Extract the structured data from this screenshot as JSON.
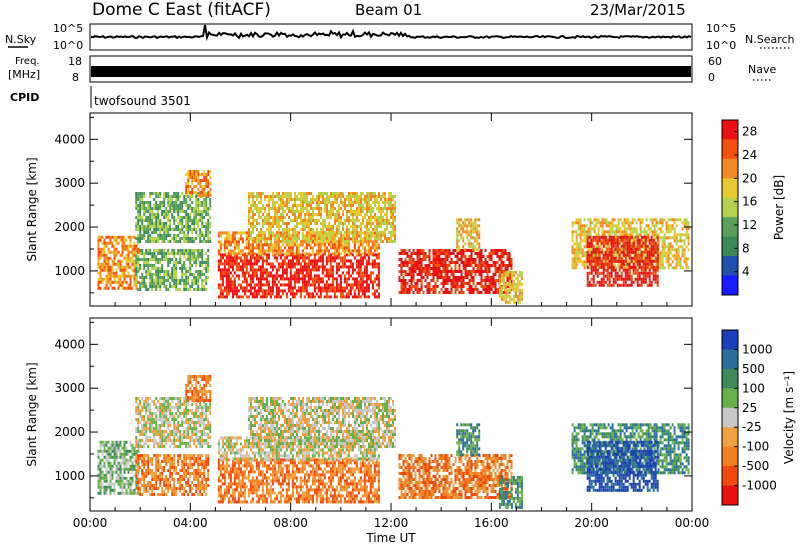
{
  "header": {
    "station": "Dome C East (fitACF)",
    "beam": "Beam 01",
    "date": "23/Mar/2015"
  },
  "noise_panel": {
    "left_label": "N.Sky",
    "right_label": "N.Search",
    "left_ticks": [
      "10^5",
      "10^0"
    ],
    "right_ticks": [
      "10^5",
      "10^0"
    ]
  },
  "freq_panel": {
    "left_label_1": "Freq.",
    "left_label_2": "[MHz]",
    "right_label": "Nave",
    "left_ticks": [
      "18",
      "8"
    ],
    "right_ticks": [
      "60",
      "0"
    ]
  },
  "cpid": {
    "label": "CPID",
    "value": "twofsound 3501"
  },
  "colors": {
    "power_scale": [
      "#1a1aff",
      "#1f4fa8",
      "#3c8a5a",
      "#5aa05a",
      "#b4d050",
      "#e8c830",
      "#f08a20",
      "#f05010",
      "#e81010"
    ],
    "velocity_scale": [
      "#1a3fb8",
      "#2a6e9e",
      "#3f8a5a",
      "#6ab04a",
      "#c8c8c8",
      "#f0a040",
      "#f08020",
      "#f04a10",
      "#e81010"
    ]
  },
  "chart_data": [
    {
      "type": "heatmap",
      "title": "Power",
      "ylabel": "Slant Range [km]",
      "xlabel": "",
      "ylim": [
        200,
        4600
      ],
      "yticks": [
        "1000",
        "2000",
        "3000",
        "4000"
      ],
      "xticks": [
        "00:00",
        "04:00",
        "08:00",
        "12:00",
        "16:00",
        "20:00",
        "00:00"
      ],
      "xlim_hours": [
        0,
        24
      ],
      "colorbar": {
        "label": "Power [dB]",
        "ticks": [
          "4",
          "8",
          "12",
          "16",
          "20",
          "24",
          "28"
        ],
        "range": [
          0,
          30
        ]
      }
    },
    {
      "type": "heatmap",
      "title": "Velocity",
      "ylabel": "Slant Range [km]",
      "xlabel": "Time UT",
      "ylim": [
        200,
        4600
      ],
      "yticks": [
        "1000",
        "2000",
        "3000",
        "4000"
      ],
      "xticks": [
        "00:00",
        "04:00",
        "08:00",
        "12:00",
        "16:00",
        "20:00",
        "00:00"
      ],
      "xlim_hours": [
        0,
        24
      ],
      "colorbar": {
        "label": "Velocity [m s⁻¹]",
        "ticks": [
          "1000",
          "500",
          "100",
          "25",
          "-25",
          "-100",
          "-500",
          "-1000"
        ]
      }
    }
  ]
}
